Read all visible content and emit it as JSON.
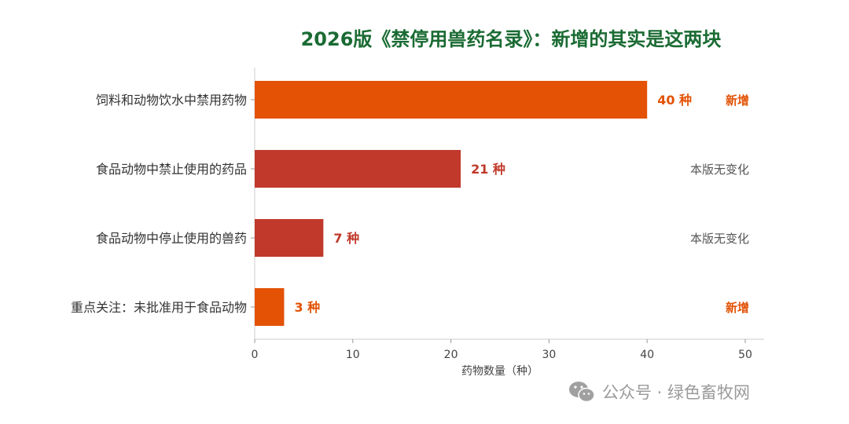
{
  "chart_data": {
    "type": "bar",
    "orientation": "horizontal",
    "title": "2026版《禁停用兽药名录》：新增的其实是这两块",
    "xlabel": "药物数量（种）",
    "xlim": [
      0,
      50
    ],
    "xticks": [
      "0",
      "10",
      "20",
      "30",
      "40",
      "50"
    ],
    "categories": [
      "饲料和动物饮水中禁用药物",
      "食品动物中禁止使用的药品",
      "食品动物中停止使用的兽药",
      "重点关注：未批准用于食品动物"
    ],
    "values": [
      40,
      21,
      7,
      3
    ],
    "value_labels": [
      "40 种",
      "21 种",
      "7 种",
      "3 种"
    ],
    "status_labels": [
      "新增",
      "本版无变化",
      "本版无变化",
      "新增"
    ],
    "bar_colors": [
      "#e35205",
      "#c0392b",
      "#c0392b",
      "#e35205"
    ],
    "status_colors": [
      "#e35205",
      "#555555",
      "#555555",
      "#e35205"
    ],
    "grid": false
  },
  "watermark": {
    "text": "公众号 · 绿色畜牧网",
    "icon": "wechat-icon"
  }
}
